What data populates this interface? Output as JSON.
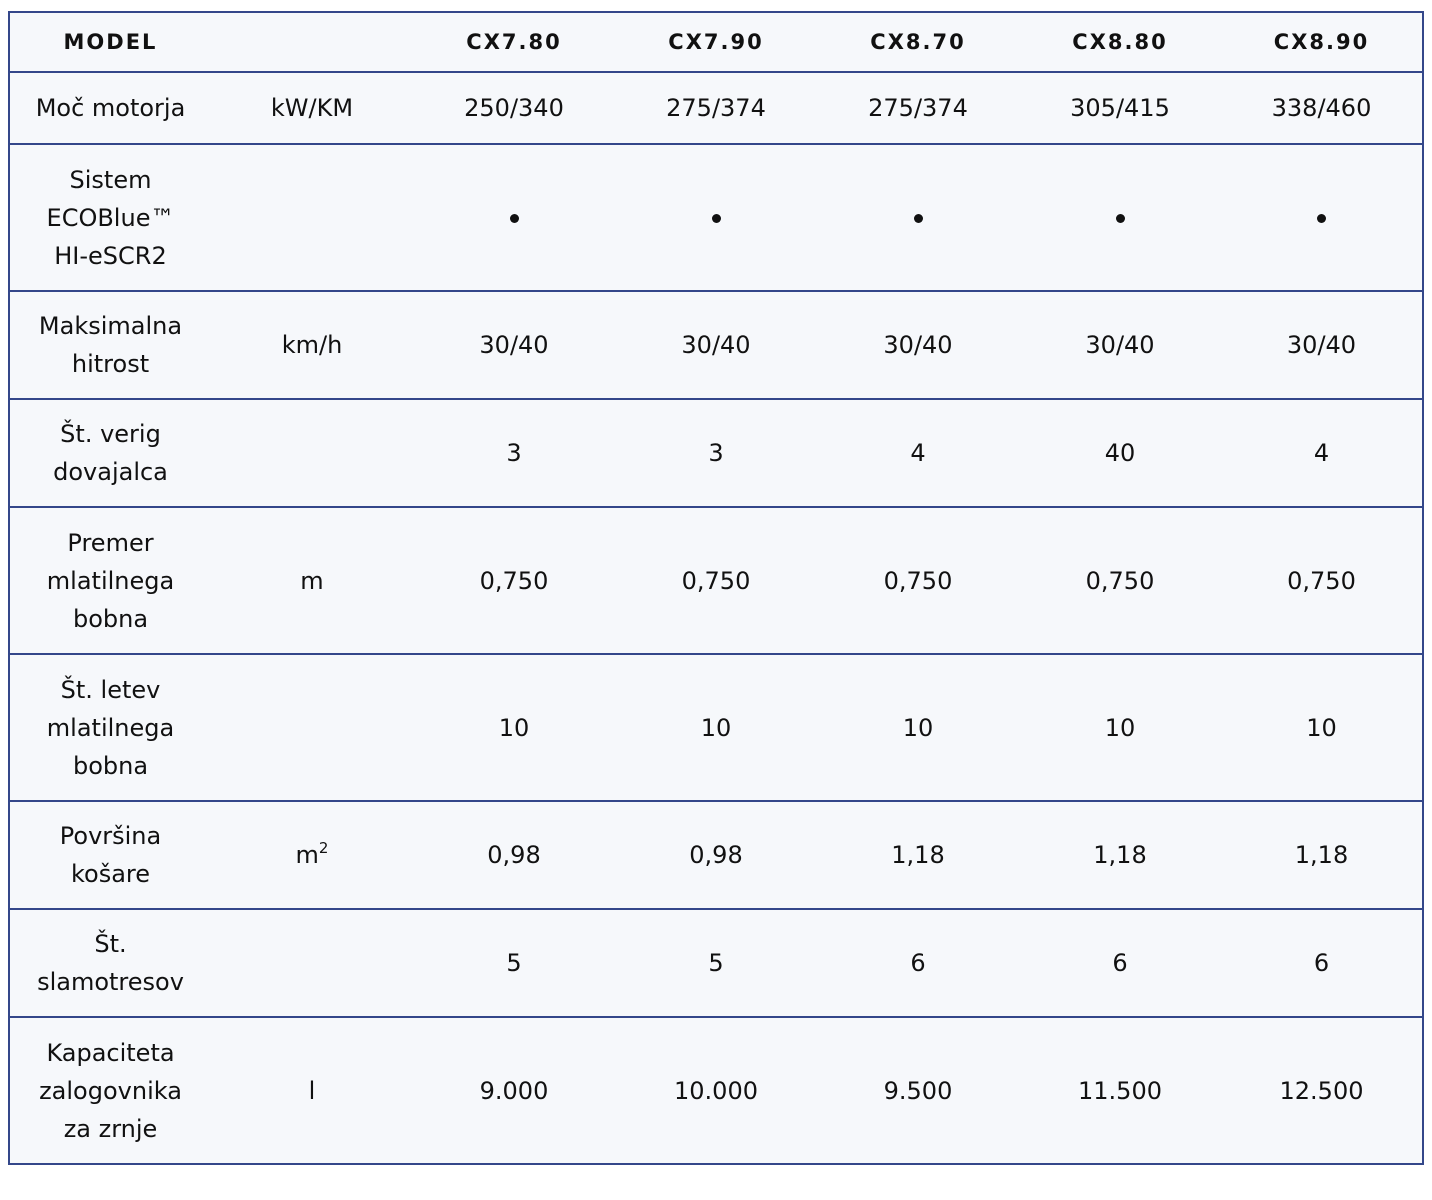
{
  "header": {
    "model_label": "MODEL",
    "unit_label": "",
    "models": [
      "CX7.80",
      "CX7.90",
      "CX8.70",
      "CX8.80",
      "CX8.90"
    ]
  },
  "rows": [
    {
      "label_lines": [
        "Moč motorja"
      ],
      "unit": "kW/KM",
      "values": [
        "250/340",
        "275/374",
        "275/374",
        "305/415",
        "338/460"
      ]
    },
    {
      "label_lines": [
        "Sistem",
        "ECOBlue™",
        "HI-eSCR2"
      ],
      "unit": "",
      "values": [
        "•",
        "•",
        "•",
        "•",
        "•"
      ]
    },
    {
      "label_lines": [
        "Maksimalna",
        "hitrost"
      ],
      "unit": "km/h",
      "values": [
        "30/40",
        "30/40",
        "30/40",
        "30/40",
        "30/40"
      ]
    },
    {
      "label_lines": [
        "Št. verig",
        "dovajalca"
      ],
      "unit": "",
      "values": [
        "3",
        "3",
        "4",
        "40",
        "4"
      ]
    },
    {
      "label_lines": [
        "Premer",
        "mlatilnega",
        "bobna"
      ],
      "unit": "m",
      "values": [
        "0,750",
        "0,750",
        "0,750",
        "0,750",
        "0,750"
      ]
    },
    {
      "label_lines": [
        "Št. letev",
        "mlatilnega",
        "bobna"
      ],
      "unit": "",
      "values": [
        "10",
        "10",
        "10",
        "10",
        "10"
      ]
    },
    {
      "label_lines": [
        "Površina",
        "košare"
      ],
      "unit": "m",
      "unit_sup": "2",
      "values": [
        "0,98",
        "0,98",
        "1,18",
        "1,18",
        "1,18"
      ]
    },
    {
      "label_lines": [
        "Št.",
        "slamotresov"
      ],
      "unit": "",
      "values": [
        "5",
        "5",
        "6",
        "6",
        "6"
      ]
    },
    {
      "label_lines": [
        "Kapaciteta",
        "zalogovnika",
        "za zrnje"
      ],
      "unit": "l",
      "values": [
        "9.000",
        "10.000",
        "9.500",
        "11.500",
        "12.500"
      ]
    }
  ]
}
